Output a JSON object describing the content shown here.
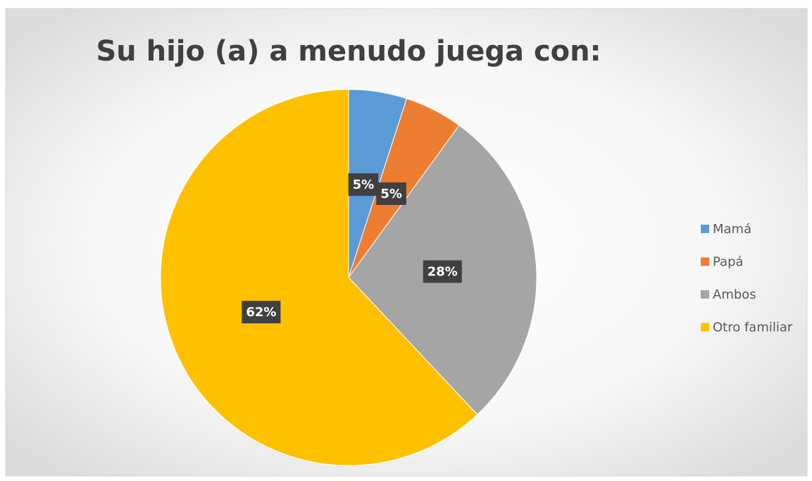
{
  "chart_data": {
    "type": "pie",
    "title": "Su hijo (a) a menudo juega con:",
    "categories": [
      "Mamá",
      "Papá",
      "Ambos",
      "Otro familiar"
    ],
    "values": [
      5,
      5,
      28,
      62
    ],
    "value_labels": [
      "5%",
      "5%",
      "28%",
      "62%"
    ],
    "colors": [
      "#5b9bd5",
      "#ed7d31",
      "#a5a5a5",
      "#ffc000"
    ],
    "legend": "right"
  }
}
